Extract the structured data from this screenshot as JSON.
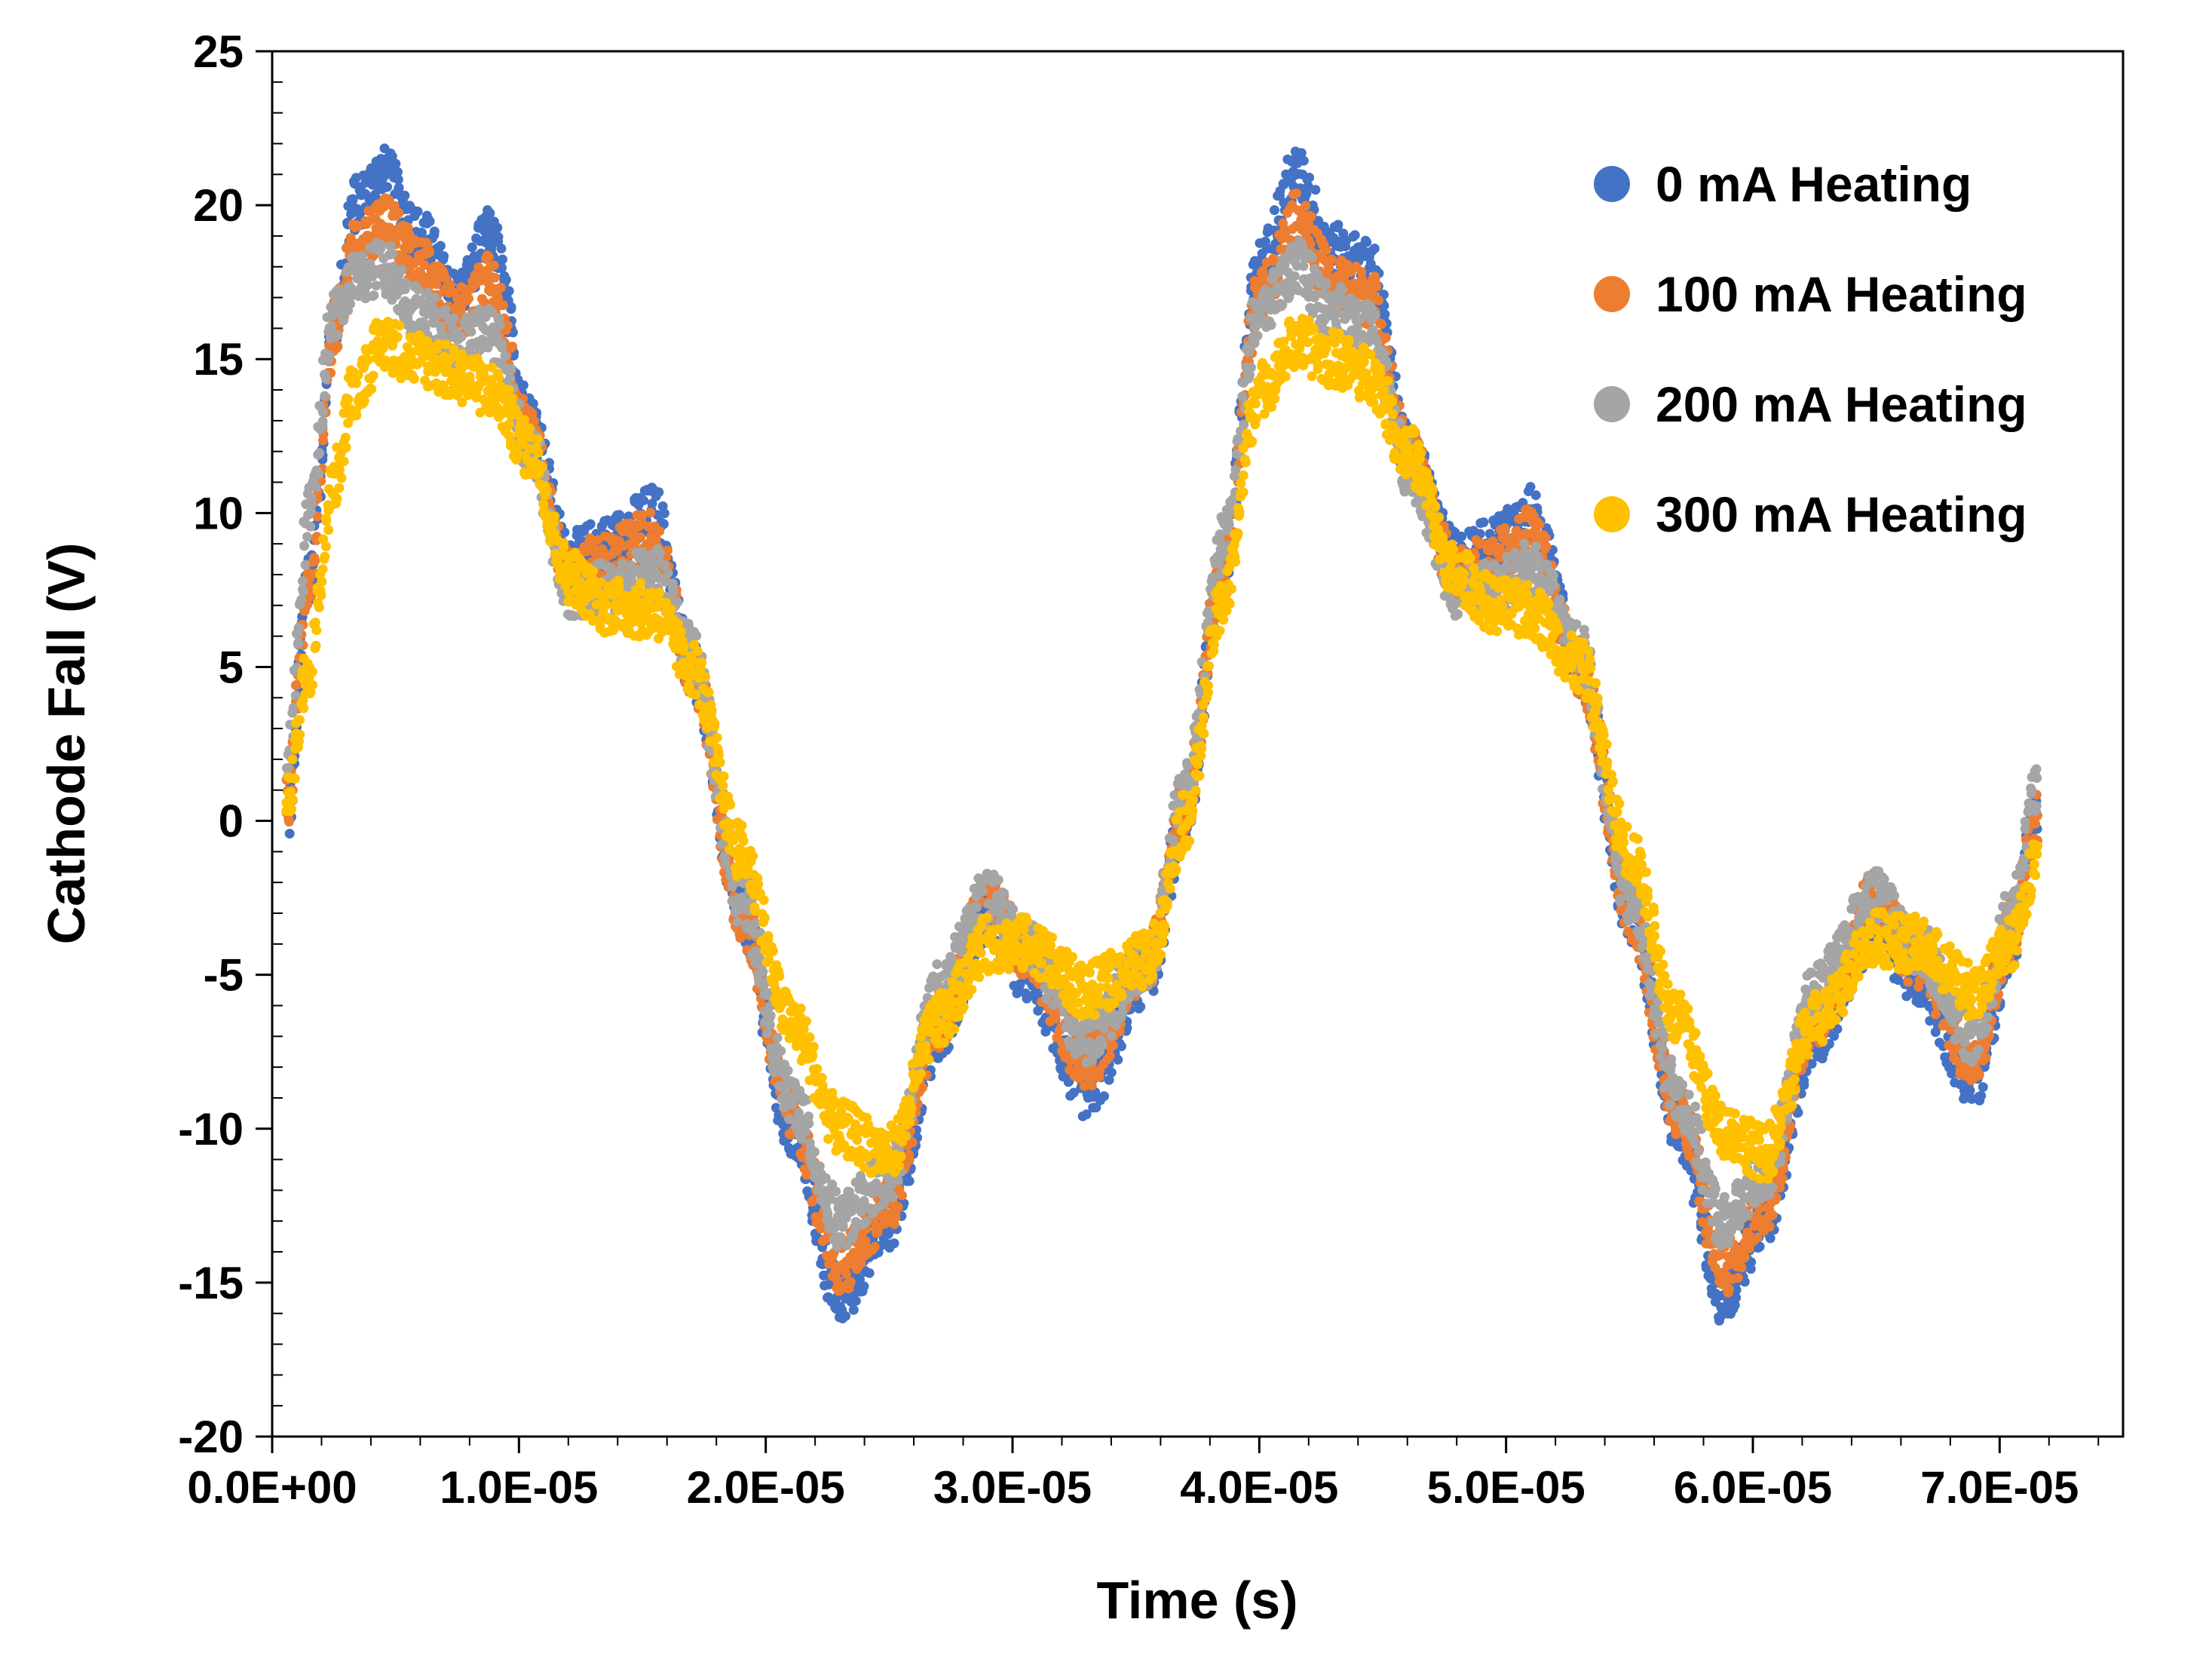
{
  "chart_data": {
    "type": "scatter",
    "title": "",
    "xlabel": "Time (s)",
    "ylabel": "Cathode Fall (V)",
    "xlim": [
      0,
      7.5e-05
    ],
    "ylim": [
      -20,
      25
    ],
    "x_ticks": [
      {
        "value": 0,
        "label": "0.0E+00"
      },
      {
        "value": 1e-05,
        "label": "1.0E-05"
      },
      {
        "value": 2e-05,
        "label": "2.0E-05"
      },
      {
        "value": 3e-05,
        "label": "3.0E-05"
      },
      {
        "value": 4e-05,
        "label": "4.0E-05"
      },
      {
        "value": 5e-05,
        "label": "5.0E-05"
      },
      {
        "value": 6e-05,
        "label": "6.0E-05"
      },
      {
        "value": 7e-05,
        "label": "7.0E-05"
      }
    ],
    "y_ticks": [
      {
        "value": 25,
        "label": "25"
      },
      {
        "value": 20,
        "label": "20"
      },
      {
        "value": 15,
        "label": "15"
      },
      {
        "value": 10,
        "label": "10"
      },
      {
        "value": 5,
        "label": "5"
      },
      {
        "value": 0,
        "label": "0"
      },
      {
        "value": -5,
        "label": "-5"
      },
      {
        "value": -10,
        "label": "-10"
      },
      {
        "value": -15,
        "label": "-15"
      },
      {
        "value": -20,
        "label": "-20"
      }
    ],
    "grid": false,
    "legend_position": "top-right",
    "series": [
      {
        "name": "0 mA Heating",
        "color": "#4472C4",
        "band_width": 0.9,
        "x": [
          6e-07,
          1.5e-06,
          2.5e-06,
          3.3e-06,
          4.5e-06,
          6e-06,
          7.5e-06,
          8.8e-06,
          1.05e-05,
          1.2e-05,
          1.35e-05,
          1.55e-05,
          1.7e-05,
          1.9e-05,
          2.1e-05,
          2.3e-05,
          2.5e-05,
          2.7e-05,
          2.9e-05,
          3.05e-05,
          3.3e-05,
          3.55e-05,
          3.7e-05,
          3.85e-05,
          4e-05,
          4.15e-05,
          4.3e-05,
          4.45e-05,
          4.6e-05,
          4.8e-05,
          4.95e-05,
          5.1e-05,
          5.3e-05,
          5.5e-05,
          5.7e-05,
          5.88e-05,
          6.05e-05,
          6.25e-05,
          6.5e-05,
          6.65e-05,
          6.9e-05,
          7.05e-05,
          7.15e-05
        ],
        "y": [
          0,
          8,
          16,
          20,
          21,
          19,
          17,
          19,
          13,
          8.5,
          9,
          10,
          5,
          -3,
          -10,
          -15.5,
          -13,
          -7,
          -3,
          -5,
          -8.8,
          -5,
          0,
          8,
          18,
          21,
          18.5,
          18,
          12,
          8.5,
          9,
          10,
          5,
          -3,
          -10,
          -15.5,
          -13,
          -7,
          -3.5,
          -5,
          -8.5,
          -4,
          0
        ]
      },
      {
        "name": "100 mA Heating",
        "color": "#ED7D31",
        "band_width": 0.9,
        "x": [
          6e-07,
          1.5e-06,
          2.5e-06,
          3.3e-06,
          4.5e-06,
          6e-06,
          7.5e-06,
          8.8e-06,
          1.05e-05,
          1.2e-05,
          1.35e-05,
          1.55e-05,
          1.7e-05,
          1.9e-05,
          2.1e-05,
          2.3e-05,
          2.5e-05,
          2.7e-05,
          2.9e-05,
          3.05e-05,
          3.3e-05,
          3.55e-05,
          3.7e-05,
          3.85e-05,
          4e-05,
          4.15e-05,
          4.3e-05,
          4.45e-05,
          4.6e-05,
          4.8e-05,
          4.95e-05,
          5.1e-05,
          5.3e-05,
          5.5e-05,
          5.7e-05,
          5.88e-05,
          6.05e-05,
          6.25e-05,
          6.5e-05,
          6.65e-05,
          6.9e-05,
          7.05e-05,
          7.15e-05
        ],
        "y": [
          0.5,
          8,
          16,
          18.5,
          19.5,
          18,
          16.5,
          17.5,
          12.5,
          8,
          8.5,
          9.3,
          5,
          -3,
          -9.5,
          -14.5,
          -12.5,
          -6.5,
          -2.5,
          -4.5,
          -7.8,
          -4.5,
          0.5,
          8,
          17,
          19.5,
          17.5,
          17,
          12,
          8,
          8.5,
          9.3,
          5,
          -3,
          -9.5,
          -14.5,
          -12.5,
          -6.5,
          -2.5,
          -4.5,
          -7.8,
          -3.5,
          0
        ]
      },
      {
        "name": "200 mA Heating",
        "color": "#A5A5A5",
        "band_width": 0.9,
        "x": [
          6e-07,
          1.5e-06,
          2.5e-06,
          3.3e-06,
          4.5e-06,
          6e-06,
          7.5e-06,
          8.8e-06,
          1.05e-05,
          1.2e-05,
          1.35e-05,
          1.55e-05,
          1.7e-05,
          1.9e-05,
          2.1e-05,
          2.3e-05,
          2.5e-05,
          2.7e-05,
          2.9e-05,
          3.05e-05,
          3.3e-05,
          3.55e-05,
          3.7e-05,
          3.85e-05,
          4e-05,
          4.15e-05,
          4.3e-05,
          4.45e-05,
          4.6e-05,
          4.8e-05,
          4.95e-05,
          5.1e-05,
          5.3e-05,
          5.5e-05,
          5.7e-05,
          5.88e-05,
          6.05e-05,
          6.25e-05,
          6.5e-05,
          6.65e-05,
          6.9e-05,
          7.05e-05,
          7.15e-05
        ],
        "y": [
          2,
          10,
          16.5,
          17.5,
          18,
          16.5,
          15.5,
          16,
          12,
          7.5,
          7.5,
          8,
          5.5,
          -2.5,
          -9,
          -13,
          -11.5,
          -5.5,
          -2.5,
          -4,
          -7,
          -4.5,
          1,
          9,
          16.5,
          18,
          16.5,
          16,
          11.5,
          7.5,
          7.5,
          8.2,
          5.5,
          -2.5,
          -9,
          -13,
          -11.5,
          -5.5,
          -2.5,
          -4,
          -7,
          -3,
          1.2
        ]
      },
      {
        "name": "300 mA Heating",
        "color": "#FFC000",
        "band_width": 0.9,
        "x": [
          6e-07,
          1.5e-06,
          2.5e-06,
          3.3e-06,
          4.5e-06,
          6e-06,
          7.5e-06,
          8.8e-06,
          1.05e-05,
          1.2e-05,
          1.35e-05,
          1.55e-05,
          1.7e-05,
          1.9e-05,
          2.1e-05,
          2.3e-05,
          2.5e-05,
          2.7e-05,
          2.9e-05,
          3.05e-05,
          3.3e-05,
          3.55e-05,
          3.7e-05,
          3.85e-05,
          4e-05,
          4.15e-05,
          4.3e-05,
          4.45e-05,
          4.6e-05,
          4.8e-05,
          4.95e-05,
          5.1e-05,
          5.3e-05,
          5.5e-05,
          5.7e-05,
          5.88e-05,
          6.05e-05,
          6.25e-05,
          6.5e-05,
          6.65e-05,
          6.9e-05,
          7.05e-05,
          7.15e-05
        ],
        "y": [
          0.5,
          5,
          11,
          14,
          15.5,
          15,
          14.5,
          14,
          12,
          8,
          7,
          6.8,
          5,
          -1,
          -6.5,
          -10,
          -10.8,
          -6.5,
          -4,
          -4,
          -5.5,
          -4.5,
          0,
          7,
          14,
          15.5,
          15,
          14.5,
          12,
          8,
          7,
          6.8,
          5,
          -1,
          -6.5,
          -10,
          -10.8,
          -6.5,
          -3.8,
          -4,
          -5.5,
          -4,
          -1.2
        ]
      }
    ]
  }
}
